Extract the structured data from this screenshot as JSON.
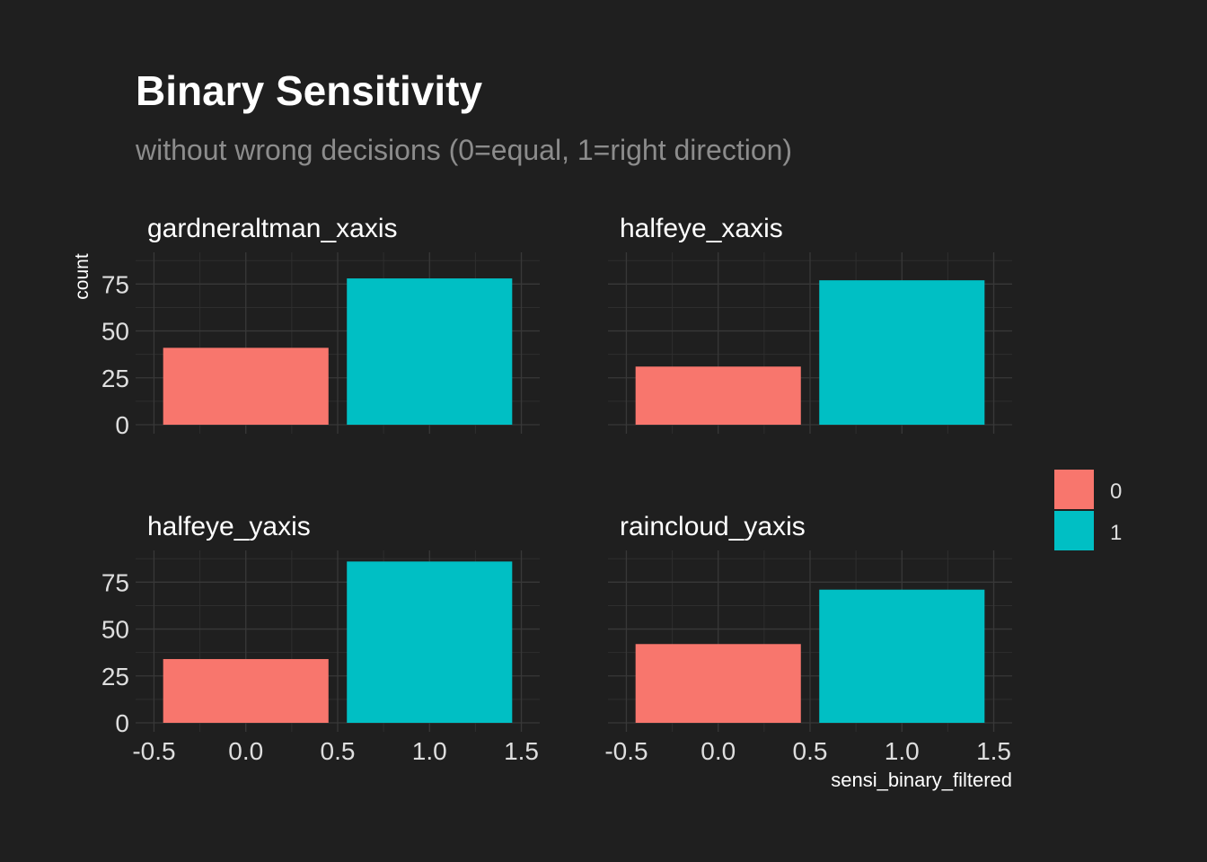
{
  "chart_data": {
    "type": "bar",
    "title": "Binary Sensitivity",
    "subtitle": "without wrong decisions (0=equal, 1=right direction)",
    "xlabel": "sensi_binary_filtered",
    "ylabel": "count",
    "xlim": [
      -0.5,
      1.5
    ],
    "xticks": [
      "-0.5",
      "0.0",
      "0.5",
      "1.0",
      "1.5"
    ],
    "ylim": [
      0,
      90
    ],
    "yticks": [
      "0",
      "25",
      "50",
      "75"
    ],
    "grid": true,
    "legend": {
      "placement": "right",
      "entries": [
        {
          "label": "0",
          "color": "#f8766d"
        },
        {
          "label": "1",
          "color": "#00bfc4"
        }
      ]
    },
    "categories": [
      "0",
      "1"
    ],
    "panels": [
      {
        "name": "gardneraltman_xaxis",
        "values": [
          41,
          78
        ]
      },
      {
        "name": "halfeye_xaxis",
        "values": [
          31,
          77
        ]
      },
      {
        "name": "halfeye_yaxis",
        "values": [
          34,
          86
        ]
      },
      {
        "name": "raincloud_yaxis",
        "values": [
          42,
          71
        ]
      }
    ]
  }
}
